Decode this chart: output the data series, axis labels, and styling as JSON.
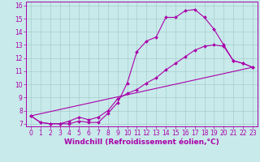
{
  "background_color": "#c8eaea",
  "grid_color": "#a8cccc",
  "line_color": "#aa00aa",
  "marker": "D",
  "marker_size": 2.0,
  "linewidth": 0.8,
  "xlabel": "Windchill (Refroidissement éolien,°C)",
  "xlabel_fontsize": 6.5,
  "tick_fontsize": 5.5,
  "xlim": [
    -0.5,
    23.5
  ],
  "ylim": [
    6.8,
    16.3
  ],
  "yticks": [
    7,
    8,
    9,
    10,
    11,
    12,
    13,
    14,
    15,
    16
  ],
  "xticks": [
    0,
    1,
    2,
    3,
    4,
    5,
    6,
    7,
    8,
    9,
    10,
    11,
    12,
    13,
    14,
    15,
    16,
    17,
    18,
    19,
    20,
    21,
    22,
    23
  ],
  "line1_x": [
    0,
    1,
    2,
    3,
    4,
    5,
    6,
    7,
    8,
    9,
    10,
    11,
    12,
    13,
    14,
    15,
    16,
    17,
    18,
    19,
    20,
    21,
    22,
    23
  ],
  "line1_y": [
    7.6,
    7.1,
    7.0,
    7.0,
    7.0,
    7.2,
    7.1,
    7.1,
    7.8,
    8.6,
    10.1,
    12.5,
    13.3,
    13.6,
    15.1,
    15.1,
    15.6,
    15.7,
    15.1,
    14.2,
    13.0,
    11.8,
    11.6,
    11.3
  ],
  "line2_x": [
    0,
    1,
    2,
    3,
    4,
    5,
    6,
    7,
    8,
    9,
    10,
    11,
    12,
    13,
    14,
    15,
    16,
    17,
    18,
    19,
    20,
    21,
    22,
    23
  ],
  "line2_y": [
    7.6,
    7.1,
    7.0,
    7.0,
    7.2,
    7.5,
    7.3,
    7.5,
    8.0,
    8.9,
    9.3,
    9.6,
    10.1,
    10.5,
    11.1,
    11.6,
    12.1,
    12.6,
    12.9,
    13.0,
    12.9,
    11.8,
    11.6,
    11.3
  ],
  "line3_x": [
    0,
    23
  ],
  "line3_y": [
    7.6,
    11.3
  ]
}
